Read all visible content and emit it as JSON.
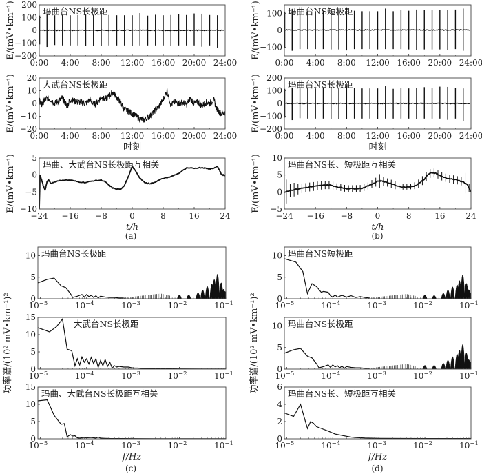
{
  "figure": {
    "captions": [
      "(a)",
      "(b)",
      "(c)",
      "(d)"
    ]
  },
  "chart_data": [
    {
      "id": "a1",
      "type": "line",
      "panel": "a",
      "annotation": "玛曲台NS长极距",
      "ylabel": "E/(mV•km⁻¹)",
      "xlabel": "",
      "ylim": [
        -200,
        200
      ],
      "yticks": [
        200,
        100,
        0,
        -100,
        -200
      ],
      "xlim": [
        0,
        24
      ],
      "xtick_labels": [
        "0:00",
        "4:00",
        "8:00",
        "12:00",
        "16:00",
        "20:00",
        "24:00"
      ],
      "baseline": 0,
      "spikes": {
        "hours": [
          0.05,
          1,
          2,
          3,
          4,
          5,
          6,
          7,
          8,
          9,
          10,
          11,
          12,
          13,
          14,
          15,
          16,
          17,
          18,
          19,
          20,
          21,
          22,
          23
        ],
        "max": [
          115,
          125,
          118,
          120,
          118,
          120,
          122,
          120,
          138,
          120,
          118,
          118,
          118,
          135,
          115,
          122,
          118,
          120,
          128,
          120,
          132,
          130,
          120,
          118
        ],
        "min": [
          -110,
          -130,
          -115,
          -118,
          -118,
          -118,
          -120,
          -120,
          -122,
          -118,
          -118,
          -118,
          -120,
          -118,
          -118,
          -118,
          -118,
          -122,
          -118,
          -118,
          -118,
          -128,
          -118,
          -135
        ]
      }
    },
    {
      "id": "b1",
      "type": "line",
      "panel": "b",
      "annotation": "玛曲台NS短极距",
      "ylabel": "E/(mV•km⁻¹)",
      "xlabel": "",
      "ylim": [
        -150,
        150
      ],
      "yticks": [
        100,
        0,
        -100
      ],
      "xlim": [
        0,
        24
      ],
      "xtick_labels": [
        "0:00",
        "4:00",
        "8:00",
        "12:00",
        "16:00",
        "20:00",
        "24:00"
      ],
      "baseline": 2,
      "spikes": {
        "hours": [
          0.05,
          1,
          2,
          3,
          4,
          5,
          6,
          7,
          8,
          9,
          10,
          11,
          12,
          13,
          14,
          15,
          16,
          17,
          18,
          19,
          20,
          21,
          22,
          23
        ],
        "max": [
          110,
          125,
          112,
          115,
          112,
          115,
          118,
          115,
          135,
          115,
          112,
          112,
          112,
          128,
          112,
          118,
          115,
          122,
          118,
          118,
          118,
          120,
          122,
          128
        ],
        "min": [
          -105,
          -120,
          -110,
          -110,
          -110,
          -110,
          -112,
          -112,
          -118,
          -110,
          -110,
          -110,
          -112,
          -110,
          -110,
          -110,
          -112,
          -115,
          -112,
          -112,
          -112,
          -115,
          -110,
          -120
        ]
      }
    },
    {
      "id": "a2",
      "type": "line",
      "panel": "a",
      "annotation": "大武台NS长极距",
      "ylabel": "E/(mV•km⁻¹)",
      "xlabel": "时刻",
      "ylim": [
        -20,
        20
      ],
      "yticks": [
        20,
        10,
        0,
        -10,
        -20
      ],
      "xlim": [
        0,
        24
      ],
      "xtick_labels": [
        "0:00",
        "4:00",
        "8:00",
        "12:00",
        "16:00",
        "20:00",
        "24:00"
      ],
      "x": [
        0,
        0.3,
        0.6,
        1,
        1.5,
        2,
        2.5,
        3,
        3.3,
        3.6,
        4,
        4.5,
        5,
        5.5,
        6,
        6.5,
        7,
        7.5,
        8,
        8.5,
        9,
        9.5,
        10,
        10.5,
        11,
        11.5,
        12,
        12.5,
        13,
        13.5,
        14,
        14.5,
        15,
        15.5,
        16,
        16.5,
        17,
        17.5,
        18,
        18.5,
        19,
        19.5,
        20,
        20.5,
        21,
        21.5,
        22,
        22.5,
        23,
        23.5,
        24
      ],
      "y": [
        3,
        -1,
        2,
        4,
        3,
        0,
        2,
        4,
        1,
        -2,
        3,
        2,
        1,
        1,
        0,
        3,
        -1,
        1,
        5,
        3,
        6,
        9,
        5,
        1,
        -5,
        -6,
        -8,
        -10,
        -12,
        -13,
        -11,
        -9,
        -5,
        -2,
        3,
        10,
        -1,
        1,
        0,
        1,
        -1,
        4,
        0,
        1,
        -2,
        1,
        0,
        3,
        -5,
        -8,
        -7
      ],
      "noise_amplitude": 2.5
    },
    {
      "id": "b2",
      "type": "line",
      "panel": "b",
      "annotation": "玛曲台NS长极距",
      "ylabel": "E/(mV•km⁻¹)",
      "xlabel": "时刻",
      "ylim": [
        -200,
        200
      ],
      "yticks": [
        200,
        100,
        0,
        -100,
        -200
      ],
      "xlim": [
        0,
        24
      ],
      "xtick_labels": [
        "0:00",
        "4:00",
        "8:00",
        "12:00",
        "16:00",
        "20:00",
        "24:00"
      ],
      "baseline": 0,
      "spikes": {
        "hours": [
          0.05,
          1,
          2,
          3,
          4,
          5,
          6,
          7,
          8,
          9,
          10,
          11,
          12,
          13,
          14,
          15,
          16,
          17,
          18,
          19,
          20,
          21,
          22,
          23
        ],
        "max": [
          115,
          125,
          118,
          120,
          118,
          120,
          122,
          120,
          138,
          120,
          118,
          118,
          118,
          135,
          115,
          122,
          118,
          120,
          128,
          120,
          132,
          130,
          120,
          118
        ],
        "min": [
          -110,
          -130,
          -115,
          -118,
          -118,
          -118,
          -120,
          -120,
          -122,
          -118,
          -118,
          -118,
          -120,
          -118,
          -118,
          -118,
          -118,
          -122,
          -118,
          -118,
          -118,
          -128,
          -118,
          -135
        ]
      }
    },
    {
      "id": "a3",
      "type": "line",
      "panel": "a",
      "annotation": "玛曲、大武台NS长极距互相关",
      "ylabel": "E/(mV•km⁻¹)",
      "xlabel": "t/h",
      "ylim": [
        -10,
        5
      ],
      "yticks": [
        5,
        0,
        -5,
        -10
      ],
      "xlim": [
        -24,
        24
      ],
      "xtick_labels": [
        "-24",
        "-16",
        "-8",
        "0",
        "8",
        "16",
        "24"
      ],
      "x": [
        -24,
        -23.8,
        -23.5,
        -23,
        -22.5,
        -22,
        -21.5,
        -21,
        -20,
        -18,
        -16,
        -14,
        -12,
        -10,
        -8,
        -7,
        -6,
        -5,
        -4,
        -3,
        -2,
        -1,
        0,
        1,
        2,
        3,
        4,
        5,
        6,
        8,
        10,
        12,
        14,
        16,
        18,
        19,
        20,
        21,
        22,
        22.5,
        23,
        23.5,
        24
      ],
      "y": [
        -10,
        0,
        -1,
        -3,
        -4.5,
        -2,
        -1.5,
        -2.5,
        -2,
        -1.5,
        -1.5,
        -2,
        -2.2,
        -1.7,
        -1.5,
        -2,
        -3,
        -3.8,
        -4.2,
        -4.2,
        -3,
        -0.5,
        2.5,
        1,
        -1,
        -2,
        -2.5,
        -2.5,
        -2,
        -1,
        -0.5,
        0.5,
        2,
        2,
        2.2,
        2,
        1.8,
        2,
        2.5,
        1.5,
        0.2,
        0,
        -0.2
      ]
    },
    {
      "id": "b3",
      "type": "line",
      "panel": "b",
      "annotation": "玛曲台NS长、短极距互相关",
      "ylabel": "E/(mV•km⁻¹)",
      "xlabel": "t/h",
      "ylim": [
        -5,
        10
      ],
      "yticks": [
        10,
        5,
        0,
        -5
      ],
      "xlim": [
        -24,
        24
      ],
      "xtick_labels": [
        "-24",
        "-16",
        "-8",
        "0",
        "8",
        "16",
        "24"
      ],
      "x": [
        -24,
        -22,
        -20,
        -18,
        -16,
        -14,
        -13,
        -12,
        -10,
        -8,
        -6,
        -4,
        -2,
        0,
        1,
        2,
        4,
        6,
        8,
        9,
        10,
        12,
        13,
        14,
        15,
        16,
        18,
        20,
        22,
        23,
        24
      ],
      "y": [
        0,
        0.6,
        1,
        1.4,
        1.7,
        2,
        2.1,
        2,
        1.4,
        1,
        1,
        1.1,
        2,
        3.2,
        3.3,
        3,
        2.2,
        1.5,
        1.5,
        1.7,
        2,
        3.8,
        5.2,
        5.7,
        5.5,
        4.8,
        4,
        3.6,
        3,
        2.2,
        0
      ],
      "errorbar_hours": [
        -23.5,
        -22.5,
        -21.5,
        -20.5,
        -19.5,
        -18.5,
        -17.5,
        -16.5,
        -15.5,
        -14.5,
        -13.5,
        -12.5,
        -11.5,
        -10.5,
        -9.5,
        -8.5,
        -7.5,
        -6.5,
        -5.5,
        -4.5,
        -3.5,
        -2.5,
        -1.5,
        -0.5,
        0.5,
        1.5,
        2.5,
        3.5,
        4.5,
        5.5,
        6.5,
        7.5,
        8.5,
        9.5,
        10.5,
        11.5,
        12.5,
        13.5,
        14.5,
        15.5,
        16.5,
        17.5,
        18.5,
        19.5,
        20.5,
        21.5,
        22.5,
        23.5
      ],
      "errorbar_halfwidth": [
        3.5,
        2,
        2,
        1.6,
        1.4,
        1.3,
        1.3,
        1.3,
        1.3,
        1.2,
        1.2,
        1.2,
        1.2,
        1,
        1,
        1,
        1,
        1,
        1,
        1,
        1,
        1,
        1.2,
        1.3,
        2,
        1.3,
        1.2,
        1.2,
        1.2,
        0.8,
        0.8,
        0.8,
        0.8,
        1,
        1.2,
        1.3,
        1.3,
        1.3,
        1.3,
        1.2,
        1.2,
        1.2,
        1.2,
        1.2,
        1.2,
        1.2,
        3,
        1.2
      ]
    },
    {
      "id": "c1",
      "type": "line",
      "panel": "c",
      "xscale": "log",
      "annotation": "玛曲台NS长极距",
      "ylabel": "功率谱/(10² mV•km⁻¹)²",
      "xlabel": "",
      "ylim": [
        0,
        12
      ],
      "yticks": [
        10,
        5,
        0
      ],
      "xlim_log10": [
        -5.05,
        -1
      ],
      "xtick_exponents": [
        "-5",
        "-4",
        "-3",
        "-2",
        "-1"
      ],
      "low_x": [
        -5.05,
        -4.85,
        -4.7,
        -4.55,
        -4.45,
        -4.35,
        -4.3,
        -4.2,
        -4.1,
        -4.05,
        -4,
        -3.95,
        -3.9,
        -3.85,
        -3.8,
        -3.75,
        -3.7,
        -3.6,
        -3.5,
        -3.4,
        -3.3,
        -3.2
      ],
      "low_y": [
        3.7,
        4.5,
        4.8,
        3,
        2.6,
        1.2,
        0.3,
        0.6,
        1,
        0.4,
        1,
        0.5,
        0.8,
        0.3,
        0.7,
        0.2,
        0.6,
        0.4,
        0.3,
        0.3,
        0.2,
        0.2
      ],
      "comb_start": -3.4,
      "comb_peak_at": -2.4,
      "comb_peak": 1.2,
      "comb_end": -2.2,
      "peaks_log10": [
        -2,
        -1.8,
        -1.6,
        -1.5,
        -1.4,
        -1.3,
        -1.25,
        -1.18,
        -1.1,
        -1.05,
        -1.02
      ],
      "peaks_val": [
        0.8,
        0.8,
        1.8,
        3.2,
        4.8,
        6,
        8,
        10.5,
        6.5,
        3.5,
        2.5
      ]
    },
    {
      "id": "d1",
      "type": "line",
      "panel": "d",
      "xscale": "log",
      "annotation": "玛曲台NS短极距",
      "ylabel": "功率谱/(10² mV•km⁻¹)²",
      "xlabel": "",
      "ylim": [
        0,
        12
      ],
      "yticks": [
        10,
        5,
        0
      ],
      "xlim_log10": [
        -5.05,
        -1
      ],
      "xtick_exponents": [
        "-5",
        "-4",
        "-3",
        "-2",
        "-1"
      ],
      "low_x": [
        -5.05,
        -4.8,
        -4.65,
        -4.55,
        -4.45,
        -4.35,
        -4.25,
        -4.2,
        -4.1,
        -4.05,
        -4,
        -3.95,
        -3.9,
        -3.8,
        -3.7,
        -3.6,
        -3.5,
        -3.4,
        -3.3,
        -3.2
      ],
      "low_y": [
        9.3,
        8.5,
        6.3,
        1.2,
        3.5,
        2.8,
        1.5,
        1.7,
        1.5,
        0.7,
        0.4,
        0.9,
        0.4,
        0.8,
        0.4,
        0.7,
        0.3,
        0.5,
        0.3,
        0.2
      ],
      "comb_start": -3.4,
      "comb_peak_at": -2.4,
      "comb_peak": 1.1,
      "comb_end": -2.2,
      "peaks_log10": [
        -2,
        -1.8,
        -1.6,
        -1.5,
        -1.4,
        -1.3,
        -1.25,
        -1.18,
        -1.1,
        -1.05,
        -1.02
      ],
      "peaks_val": [
        0.8,
        0.6,
        1.6,
        3.1,
        4.6,
        5.5,
        7.5,
        10.2,
        6.2,
        3.3,
        2
      ]
    },
    {
      "id": "c2",
      "type": "line",
      "panel": "c",
      "xscale": "log",
      "annotation": "大武台NS长极距",
      "ylabel": "功率谱/(10² mV•km⁻¹)²",
      "xlabel": "",
      "ylim": [
        0,
        15
      ],
      "yticks": [
        15,
        10,
        5,
        0
      ],
      "xlim_log10": [
        -5.05,
        -1
      ],
      "xtick_exponents": [
        "-5",
        "-4",
        "-3",
        "-2",
        "-1"
      ],
      "low_x": [
        -5.05,
        -4.8,
        -4.65,
        -4.52,
        -4.42,
        -4.32,
        -4.25,
        -4.2,
        -4.15,
        -4.1,
        -4.05,
        -4,
        -3.95,
        -3.9,
        -3.85,
        -3.8,
        -3.75,
        -3.7,
        -3.65,
        -3.6,
        -3.55,
        -3.5,
        -3.45,
        -3.4,
        -3.35,
        -3.3,
        -3.2,
        -3.1,
        -3,
        -2.9,
        -2.8,
        -2.5,
        -2.2,
        -2,
        -1.5,
        -1
      ],
      "low_y": [
        12,
        10.8,
        12.3,
        14.5,
        5.8,
        5.3,
        1,
        3,
        1.2,
        3.5,
        2,
        3,
        1.5,
        3.4,
        1.6,
        3,
        0.5,
        2.5,
        1,
        2.8,
        0.8,
        2,
        0.3,
        1,
        0.6,
        0.8,
        0.6,
        0.6,
        0.3,
        0.3,
        0.2,
        0.1,
        0.08,
        0.06,
        0.05,
        0.05
      ]
    },
    {
      "id": "d2",
      "type": "line",
      "panel": "d",
      "xscale": "log",
      "annotation": "玛曲台NS长极距",
      "ylabel": "功率谱/(10² mV•km⁻¹)²",
      "xlabel": "",
      "ylim": [
        0,
        12
      ],
      "yticks": [
        10,
        5,
        0
      ],
      "xlim_log10": [
        -5.05,
        -1
      ],
      "xtick_exponents": [
        "-5",
        "-4",
        "-3",
        "-2",
        "-1"
      ],
      "low_x": [
        -5.05,
        -4.85,
        -4.7,
        -4.55,
        -4.45,
        -4.35,
        -4.3,
        -4.2,
        -4.1,
        -4.05,
        -4,
        -3.95,
        -3.9,
        -3.85,
        -3.8,
        -3.75,
        -3.7,
        -3.6,
        -3.5,
        -3.4,
        -3.3,
        -3.2
      ],
      "low_y": [
        3.7,
        4.5,
        4.8,
        3,
        2.6,
        1.2,
        0.3,
        0.6,
        1,
        0.4,
        1,
        0.5,
        0.8,
        0.3,
        0.7,
        0.2,
        0.6,
        0.4,
        0.3,
        0.3,
        0.2,
        0.2
      ],
      "comb_start": -3.4,
      "comb_peak_at": -2.4,
      "comb_peak": 1.2,
      "comb_end": -2.2,
      "peaks_log10": [
        -2,
        -1.8,
        -1.6,
        -1.5,
        -1.4,
        -1.3,
        -1.25,
        -1.18,
        -1.1,
        -1.05,
        -1.02
      ],
      "peaks_val": [
        0.8,
        0.8,
        1.8,
        3.2,
        4.8,
        6,
        8,
        10.5,
        6.5,
        3.5,
        2.5
      ]
    },
    {
      "id": "c3",
      "type": "line",
      "panel": "c",
      "xscale": "log",
      "annotation": "玛曲、大武台NS长极距互相关",
      "ylabel": "功率谱/(10² mV•km⁻¹)²",
      "xlabel": "f/Hz",
      "ylim": [
        0,
        15
      ],
      "yticks": [
        15,
        10,
        5,
        0
      ],
      "xlim_log10": [
        -5.05,
        -1
      ],
      "xtick_exponents": [
        "-5",
        "-4",
        "-3",
        "-2",
        "-1"
      ],
      "low_x": [
        -5.05,
        -4.85,
        -4.7,
        -4.55,
        -4.48,
        -4.42,
        -4.35,
        -4.3,
        -4.25,
        -4.2,
        -4.15,
        -4.05,
        -4,
        -3.9,
        -3.8,
        -3.75,
        -3.7,
        -3.6,
        -3.5,
        -3.2,
        -3,
        -2.5,
        -2,
        -1.5,
        -1
      ],
      "low_y": [
        11,
        11.3,
        6.8,
        4.2,
        4.4,
        0.6,
        1.2,
        0.8,
        0.9,
        0.3,
        0.2,
        0.4,
        0.3,
        0.4,
        0.2,
        0.5,
        0.2,
        0.15,
        0.1,
        0.08,
        0.06,
        0.05,
        0.05,
        0.05,
        0.05
      ]
    },
    {
      "id": "d3",
      "type": "line",
      "panel": "d",
      "xscale": "log",
      "annotation": "玛曲台NS长、短极距互相关",
      "ylabel": "功率谱/(10² mV•km⁻¹)²",
      "xlabel": "f/Hz",
      "ylim": [
        0,
        6
      ],
      "yticks": [
        6,
        4,
        2,
        0
      ],
      "xlim_log10": [
        -5.05,
        -1
      ],
      "xtick_exponents": [
        "-5",
        "-4",
        "-3",
        "-2",
        "-1"
      ],
      "low_x": [
        -5.05,
        -4.85,
        -4.7,
        -4.55,
        -4.48,
        -4.42,
        -4.35,
        -4.25,
        -4.1,
        -3.95,
        -3.8,
        -3.7,
        -3.6,
        -3.5,
        -3.3,
        -3,
        -2.5,
        -2,
        -1.5,
        -1
      ],
      "low_y": [
        3,
        2.6,
        4,
        1.2,
        2,
        1.8,
        1.4,
        1.2,
        0.9,
        0.55,
        0.4,
        0.3,
        0.2,
        0.15,
        0.1,
        0.06,
        0.04,
        0.03,
        0.03,
        0.03
      ]
    }
  ]
}
